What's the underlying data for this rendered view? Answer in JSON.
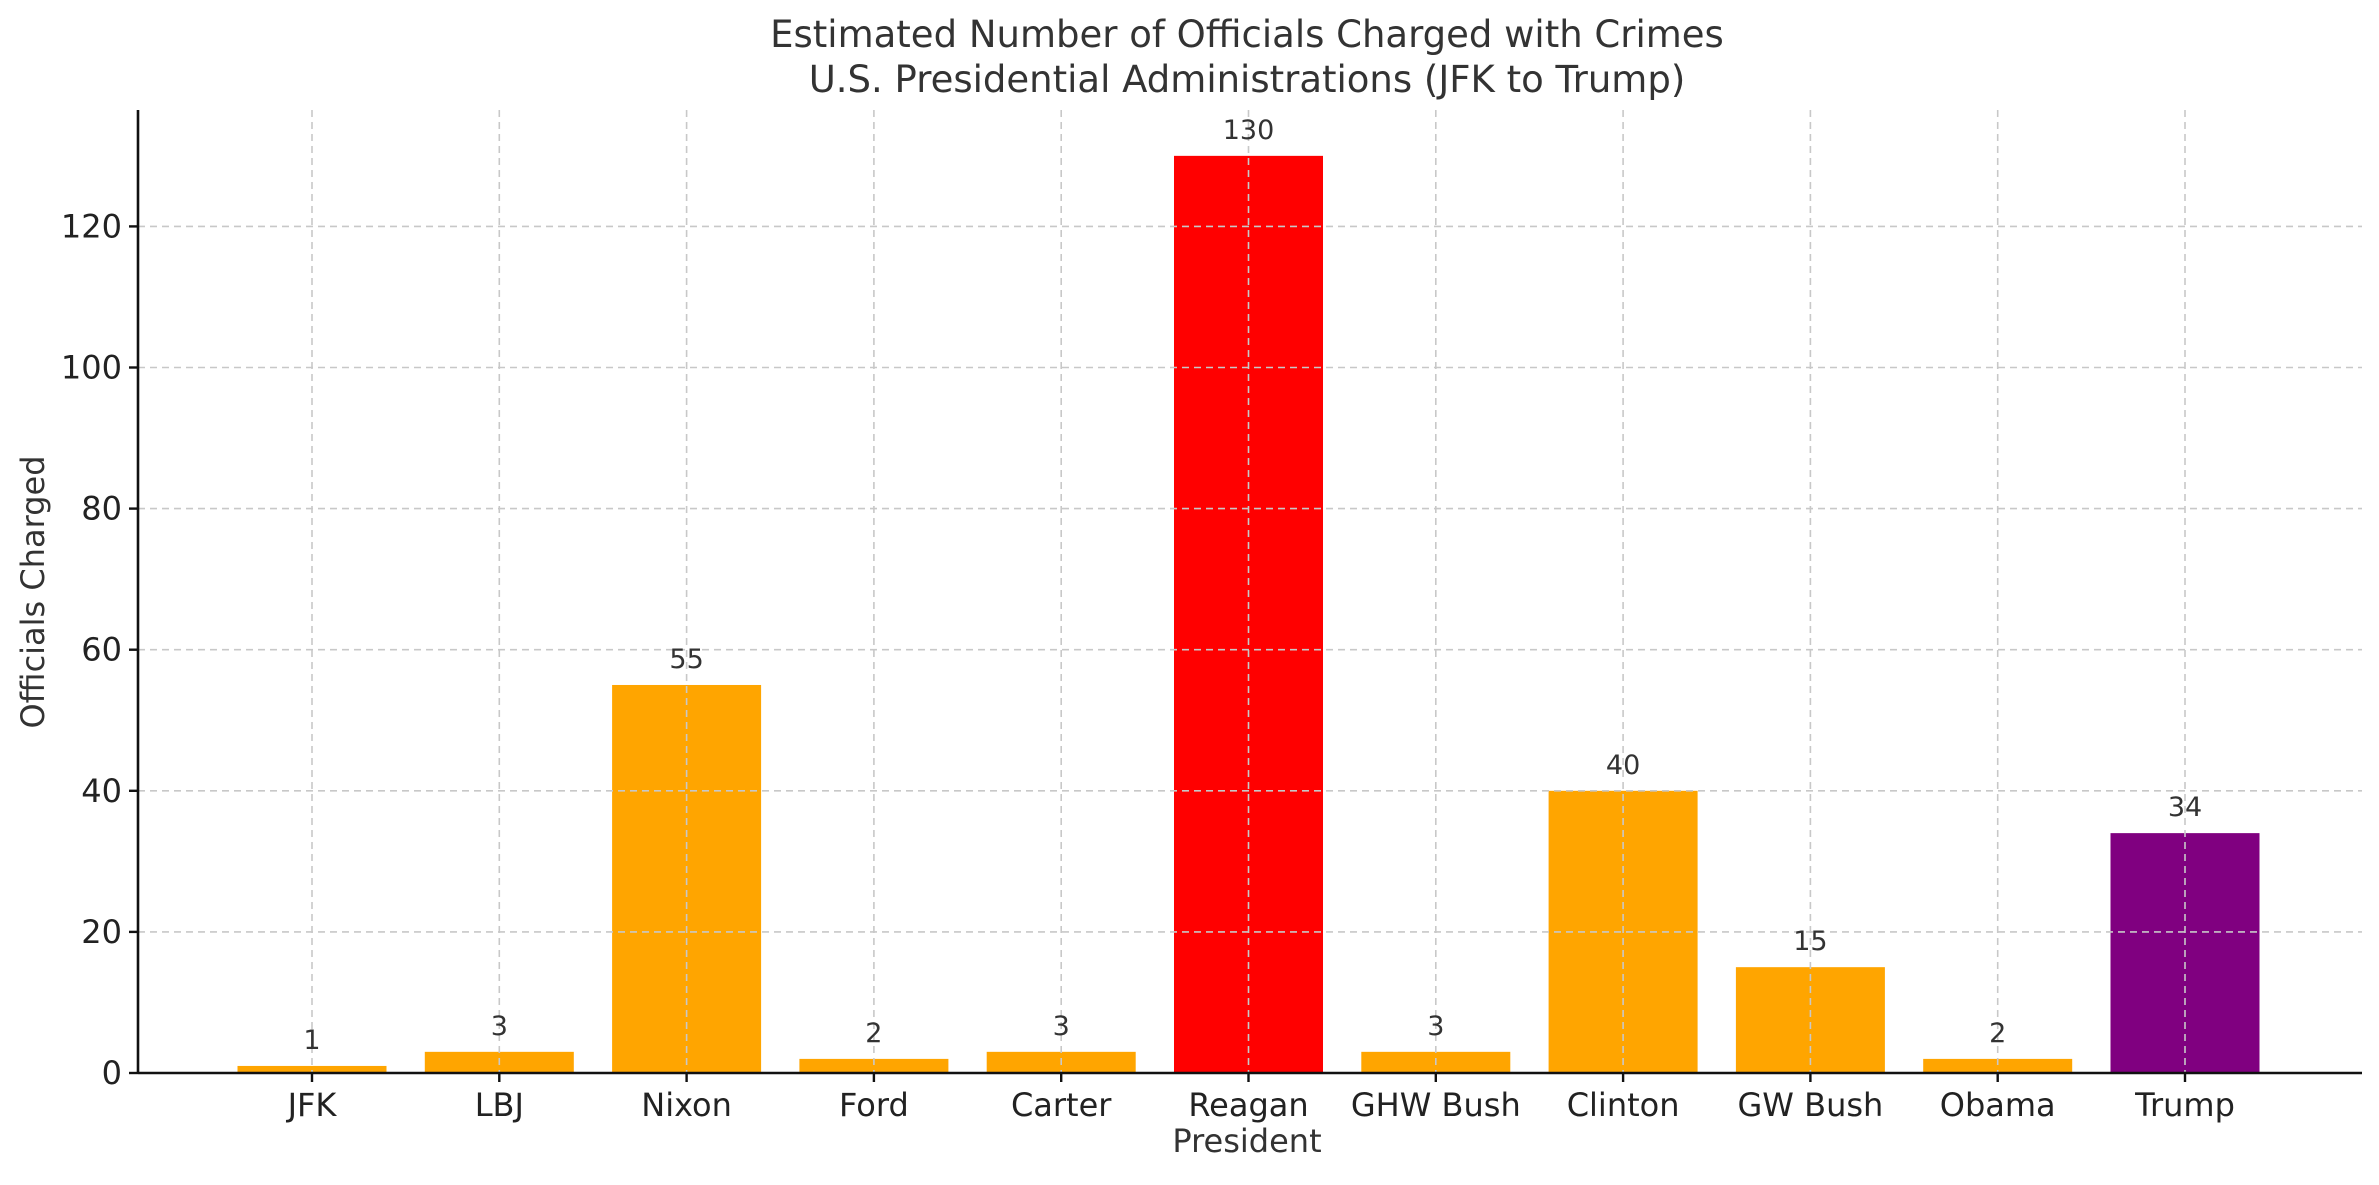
{
  "chart_data": {
    "type": "bar",
    "title": "Estimated Number of Officials Charged with Crimes",
    "subtitle": "U.S. Presidential Administrations (JFK to Trump)",
    "xlabel": "President",
    "ylabel": "Officials Charged",
    "categories": [
      "JFK",
      "LBJ",
      "Nixon",
      "Ford",
      "Carter",
      "Reagan",
      "GHW Bush",
      "Clinton",
      "GW Bush",
      "Obama",
      "Trump"
    ],
    "values": [
      1,
      3,
      55,
      2,
      3,
      130,
      3,
      40,
      15,
      2,
      34
    ],
    "colors": [
      "#FFA500",
      "#FFA500",
      "#FFA500",
      "#FFA500",
      "#FFA500",
      "#FF0000",
      "#FFA500",
      "#FFA500",
      "#FFA500",
      "#FFA500",
      "#800080"
    ],
    "ylim": [
      0,
      136.5
    ],
    "yticks": [
      0,
      20,
      40,
      60,
      80,
      100,
      120
    ],
    "grid": true
  }
}
